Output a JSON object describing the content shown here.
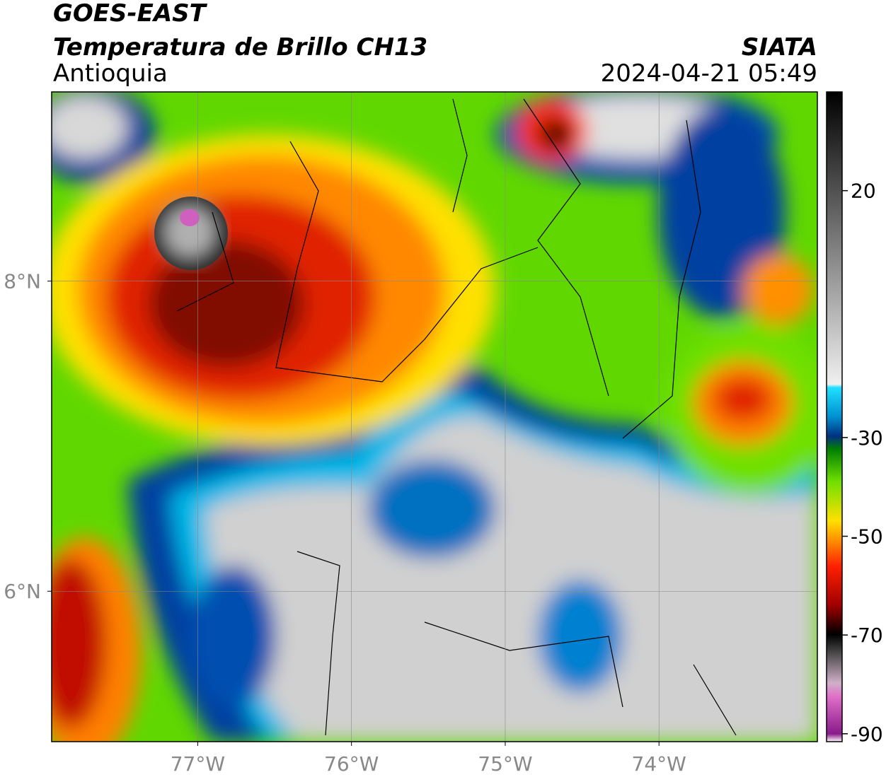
{
  "header": {
    "title": "GOES-EAST",
    "subtitle": "Temperatura de Brillo CH13",
    "region": "Antioquia",
    "source": "SIATA",
    "datetime": "2024-04-21 05:49"
  },
  "map": {
    "xlim": [
      -77.95,
      -72.97
    ],
    "ylim": [
      5.03,
      9.22
    ],
    "xticks": [
      {
        "value": -77,
        "label": "77°W"
      },
      {
        "value": -76,
        "label": "76°W"
      },
      {
        "value": -75,
        "label": "75°W"
      },
      {
        "value": -74,
        "label": "74°W"
      }
    ],
    "yticks": [
      {
        "value": 8,
        "label": "8°N"
      },
      {
        "value": 6,
        "label": "6°N"
      }
    ],
    "grid": true
  },
  "colorbar": {
    "clim": [
      -91.6,
      40
    ],
    "ticks": [
      20,
      -30,
      -50,
      -70,
      -90
    ]
  }
}
